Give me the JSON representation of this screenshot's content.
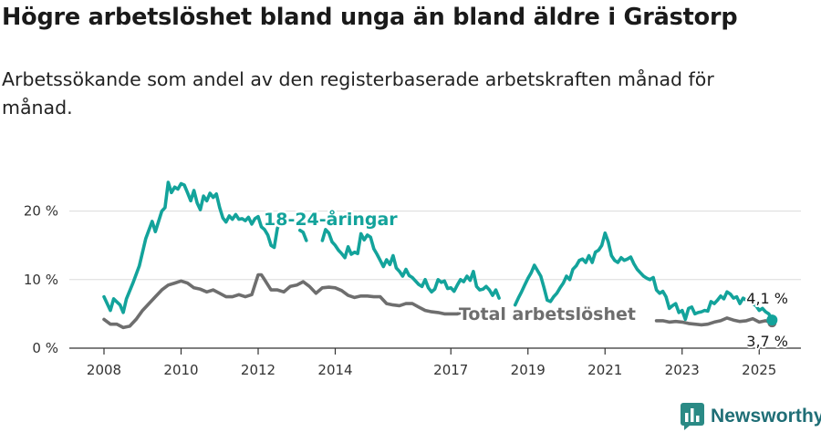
{
  "title": "Högre arbetslöshet bland unga än bland äldre i Grästorp",
  "subtitle": "Arbetssökande som andel av den registerbaserade arbetskraften månad för månad.",
  "brand": "Newsworthy",
  "colors": {
    "young": "#13a39b",
    "total": "#6e6e6e",
    "grid": "#dcdcdc",
    "axis": "#333333"
  },
  "chart_data": {
    "type": "line",
    "x_start": "2008-01",
    "ylim": [
      0,
      25
    ],
    "y_ticks": [
      {
        "value": 0,
        "label": "0 %"
      },
      {
        "value": 10,
        "label": "10 %"
      },
      {
        "value": 20,
        "label": "20 %"
      }
    ],
    "x_ticks": [
      {
        "date": "2008-01",
        "label": "2008"
      },
      {
        "date": "2010-01",
        "label": "2010"
      },
      {
        "date": "2012-01",
        "label": "2012"
      },
      {
        "date": "2014-01",
        "label": "2014"
      },
      {
        "date": "2017-01",
        "label": "2017"
      },
      {
        "date": "2019-01",
        "label": "2019"
      },
      {
        "date": "2021-01",
        "label": "2021"
      },
      {
        "date": "2023-01",
        "label": "2023"
      },
      {
        "date": "2025-01",
        "label": "2025"
      }
    ],
    "series": [
      {
        "name": "18-24-åringar",
        "color": "#13a39b",
        "end_label": "4,1 %",
        "points": [
          [
            "2008-01",
            7.5
          ],
          [
            "2008-03",
            5.5
          ],
          [
            "2008-04",
            7.2
          ],
          [
            "2008-06",
            6.3
          ],
          [
            "2008-07",
            5.2
          ],
          [
            "2008-08",
            7.2
          ],
          [
            "2008-10",
            9.5
          ],
          [
            "2008-12",
            12
          ],
          [
            "2009-02",
            16
          ],
          [
            "2009-04",
            18.5
          ],
          [
            "2009-05",
            17
          ],
          [
            "2009-07",
            20
          ],
          [
            "2009-08",
            20.5
          ],
          [
            "2009-09",
            24.2
          ],
          [
            "2009-10",
            22.7
          ],
          [
            "2009-11",
            23.5
          ],
          [
            "2009-12",
            23.2
          ],
          [
            "2010-01",
            24.0
          ],
          [
            "2010-02",
            23.8
          ],
          [
            "2010-03",
            22.7
          ],
          [
            "2010-04",
            21.5
          ],
          [
            "2010-05",
            23.0
          ],
          [
            "2010-06",
            21.2
          ],
          [
            "2010-07",
            20.2
          ],
          [
            "2010-08",
            22.2
          ],
          [
            "2010-09",
            21.5
          ],
          [
            "2010-10",
            22.6
          ],
          [
            "2010-11",
            22.0
          ],
          [
            "2010-12",
            22.5
          ],
          [
            "2011-01",
            20.5
          ],
          [
            "2011-02",
            19.0
          ],
          [
            "2011-03",
            18.4
          ],
          [
            "2011-04",
            19.3
          ],
          [
            "2011-05",
            18.8
          ],
          [
            "2011-06",
            19.5
          ],
          [
            "2011-07",
            18.8
          ],
          [
            "2011-08",
            18.9
          ],
          [
            "2011-09",
            18.6
          ],
          [
            "2011-10",
            19.1
          ],
          [
            "2011-11",
            18.1
          ],
          [
            "2011-12",
            18.9
          ],
          [
            "2012-01",
            19.2
          ],
          [
            "2012-02",
            17.7
          ],
          [
            "2012-03",
            17.3
          ],
          [
            "2012-04",
            16.5
          ],
          [
            "2012-05",
            15.0
          ],
          [
            "2012-06",
            14.7
          ],
          [
            "2012-07",
            17.5
          ],
          [
            "2012-08",
            18.4
          ],
          [
            "2012-09",
            18.7
          ],
          [
            "2012-10",
            null
          ],
          [
            "2013-02",
            17.2
          ],
          [
            "2013-03",
            16.9
          ],
          [
            "2013-04",
            15.7
          ],
          [
            "2013-05",
            null
          ],
          [
            "2013-09",
            15.7
          ],
          [
            "2013-10",
            17.3
          ],
          [
            "2013-11",
            16.8
          ],
          [
            "2013-12",
            15.5
          ],
          [
            "2014-01",
            15.0
          ],
          [
            "2014-02",
            14.3
          ],
          [
            "2014-03",
            13.8
          ],
          [
            "2014-04",
            13.2
          ],
          [
            "2014-05",
            14.8
          ],
          [
            "2014-06",
            13.7
          ],
          [
            "2014-07",
            14.0
          ],
          [
            "2014-08",
            13.8
          ],
          [
            "2014-09",
            16.7
          ],
          [
            "2014-10",
            15.8
          ],
          [
            "2014-11",
            16.5
          ],
          [
            "2014-12",
            16.2
          ],
          [
            "2015-01",
            14.5
          ],
          [
            "2015-02",
            13.7
          ],
          [
            "2015-03",
            12.8
          ],
          [
            "2015-04",
            11.9
          ],
          [
            "2015-05",
            12.9
          ],
          [
            "2015-06",
            12.2
          ],
          [
            "2015-07",
            13.5
          ],
          [
            "2015-08",
            11.7
          ],
          [
            "2015-09",
            11.2
          ],
          [
            "2015-10",
            10.5
          ],
          [
            "2015-11",
            11.5
          ],
          [
            "2015-12",
            10.6
          ],
          [
            "2016-01",
            10.3
          ],
          [
            "2016-02",
            9.8
          ],
          [
            "2016-03",
            9.3
          ],
          [
            "2016-04",
            9.0
          ],
          [
            "2016-05",
            10.0
          ],
          [
            "2016-06",
            8.8
          ],
          [
            "2016-07",
            8.2
          ],
          [
            "2016-08",
            8.6
          ],
          [
            "2016-09",
            10.0
          ],
          [
            "2016-10",
            9.6
          ],
          [
            "2016-11",
            9.8
          ],
          [
            "2016-12",
            8.7
          ],
          [
            "2017-01",
            8.8
          ],
          [
            "2017-02",
            8.3
          ],
          [
            "2017-03",
            9.2
          ],
          [
            "2017-04",
            10.0
          ],
          [
            "2017-05",
            9.7
          ],
          [
            "2017-06",
            10.5
          ],
          [
            "2017-07",
            9.9
          ],
          [
            "2017-08",
            11.2
          ],
          [
            "2017-09",
            9.0
          ],
          [
            "2017-10",
            8.5
          ],
          [
            "2017-11",
            8.6
          ],
          [
            "2017-12",
            9.0
          ],
          [
            "2018-01",
            8.5
          ],
          [
            "2018-02",
            7.7
          ],
          [
            "2018-03",
            8.5
          ],
          [
            "2018-04",
            7.3
          ],
          [
            "2018-05",
            null
          ],
          [
            "2018-09",
            6.3
          ],
          [
            "2018-10",
            7.3
          ],
          [
            "2018-11",
            8.2
          ],
          [
            "2018-12",
            9.2
          ],
          [
            "2019-01",
            10.2
          ],
          [
            "2019-02",
            11.0
          ],
          [
            "2019-03",
            12.1
          ],
          [
            "2019-04",
            11.3
          ],
          [
            "2019-05",
            10.5
          ],
          [
            "2019-06",
            8.8
          ],
          [
            "2019-07",
            7.0
          ],
          [
            "2019-08",
            6.8
          ],
          [
            "2019-09",
            7.5
          ],
          [
            "2019-10",
            8.0
          ],
          [
            "2019-11",
            8.8
          ],
          [
            "2019-12",
            9.5
          ],
          [
            "2020-01",
            10.5
          ],
          [
            "2020-02",
            10.0
          ],
          [
            "2020-03",
            11.5
          ],
          [
            "2020-04",
            12.0
          ],
          [
            "2020-05",
            12.8
          ],
          [
            "2020-06",
            13.0
          ],
          [
            "2020-07",
            12.5
          ],
          [
            "2020-08",
            13.5
          ],
          [
            "2020-09",
            12.5
          ],
          [
            "2020-10",
            14.0
          ],
          [
            "2020-11",
            14.3
          ],
          [
            "2020-12",
            15.0
          ],
          [
            "2021-01",
            16.8
          ],
          [
            "2021-02",
            15.5
          ],
          [
            "2021-03",
            13.5
          ],
          [
            "2021-04",
            12.8
          ],
          [
            "2021-05",
            12.5
          ],
          [
            "2021-06",
            13.2
          ],
          [
            "2021-07",
            12.8
          ],
          [
            "2021-08",
            13.0
          ],
          [
            "2021-09",
            13.3
          ],
          [
            "2021-10",
            12.3
          ],
          [
            "2021-11",
            11.5
          ],
          [
            "2021-12",
            11.0
          ],
          [
            "2022-01",
            10.5
          ],
          [
            "2022-02",
            10.2
          ],
          [
            "2022-03",
            10.0
          ],
          [
            "2022-04",
            10.3
          ],
          [
            "2022-05",
            8.5
          ],
          [
            "2022-06",
            8.0
          ],
          [
            "2022-07",
            8.3
          ],
          [
            "2022-08",
            7.5
          ],
          [
            "2022-09",
            5.8
          ],
          [
            "2022-10",
            6.2
          ],
          [
            "2022-11",
            6.5
          ],
          [
            "2022-12",
            5.2
          ],
          [
            "2023-01",
            5.5
          ],
          [
            "2023-02",
            4.2
          ],
          [
            "2023-03",
            5.8
          ],
          [
            "2023-04",
            6.0
          ],
          [
            "2023-05",
            5.0
          ],
          [
            "2023-06",
            5.2
          ],
          [
            "2023-07",
            5.3
          ],
          [
            "2023-08",
            5.5
          ],
          [
            "2023-09",
            5.4
          ],
          [
            "2023-10",
            6.8
          ],
          [
            "2023-11",
            6.5
          ],
          [
            "2023-12",
            7.0
          ],
          [
            "2024-01",
            7.6
          ],
          [
            "2024-02",
            7.2
          ],
          [
            "2024-03",
            8.2
          ],
          [
            "2024-04",
            7.9
          ],
          [
            "2024-05",
            7.3
          ],
          [
            "2024-06",
            7.5
          ],
          [
            "2024-07",
            6.5
          ],
          [
            "2024-08",
            7.3
          ],
          [
            "2024-09",
            7.0
          ],
          [
            "2024-10",
            7.2
          ],
          [
            "2024-11",
            6.5
          ],
          [
            "2024-12",
            6.2
          ],
          [
            "2025-01",
            5.5
          ],
          [
            "2025-02",
            5.8
          ],
          [
            "2025-03",
            5.3
          ],
          [
            "2025-04",
            5.0
          ],
          [
            "2025-05",
            4.1
          ]
        ]
      },
      {
        "name": "Total arbetslöshet",
        "color": "#6e6e6e",
        "end_label": "3,7 %",
        "points": [
          [
            "2008-01",
            4.2
          ],
          [
            "2008-03",
            3.5
          ],
          [
            "2008-05",
            3.5
          ],
          [
            "2008-07",
            3.0
          ],
          [
            "2008-09",
            3.2
          ],
          [
            "2008-11",
            4.2
          ],
          [
            "2009-01",
            5.5
          ],
          [
            "2009-03",
            6.5
          ],
          [
            "2009-05",
            7.5
          ],
          [
            "2009-07",
            8.5
          ],
          [
            "2009-09",
            9.2
          ],
          [
            "2009-11",
            9.5
          ],
          [
            "2010-01",
            9.8
          ],
          [
            "2010-03",
            9.5
          ],
          [
            "2010-05",
            8.8
          ],
          [
            "2010-07",
            8.6
          ],
          [
            "2010-09",
            8.2
          ],
          [
            "2010-11",
            8.5
          ],
          [
            "2011-01",
            8.0
          ],
          [
            "2011-03",
            7.5
          ],
          [
            "2011-05",
            7.5
          ],
          [
            "2011-07",
            7.8
          ],
          [
            "2011-09",
            7.5
          ],
          [
            "2011-11",
            7.8
          ],
          [
            "2012-01",
            10.7
          ],
          [
            "2012-02",
            10.7
          ],
          [
            "2012-03",
            10.0
          ],
          [
            "2012-05",
            8.5
          ],
          [
            "2012-07",
            8.5
          ],
          [
            "2012-09",
            8.2
          ],
          [
            "2012-11",
            9.0
          ],
          [
            "2013-01",
            9.2
          ],
          [
            "2013-03",
            9.7
          ],
          [
            "2013-05",
            9.0
          ],
          [
            "2013-07",
            8.0
          ],
          [
            "2013-09",
            8.8
          ],
          [
            "2013-11",
            8.9
          ],
          [
            "2014-01",
            8.8
          ],
          [
            "2014-03",
            8.4
          ],
          [
            "2014-05",
            7.7
          ],
          [
            "2014-07",
            7.4
          ],
          [
            "2014-09",
            7.6
          ],
          [
            "2014-11",
            7.6
          ],
          [
            "2015-01",
            7.5
          ],
          [
            "2015-03",
            7.5
          ],
          [
            "2015-05",
            6.5
          ],
          [
            "2015-07",
            6.3
          ],
          [
            "2015-09",
            6.2
          ],
          [
            "2015-11",
            6.5
          ],
          [
            "2016-01",
            6.5
          ],
          [
            "2016-03",
            6.0
          ],
          [
            "2016-05",
            5.5
          ],
          [
            "2016-07",
            5.3
          ],
          [
            "2016-09",
            5.2
          ],
          [
            "2016-11",
            5.0
          ],
          [
            "2017-01",
            5.0
          ],
          [
            "2017-03",
            5.0
          ],
          [
            "2017-05",
            5.3
          ],
          [
            "2017-06",
            null
          ],
          [
            "2022-05",
            4.0
          ],
          [
            "2022-07",
            4.0
          ],
          [
            "2022-09",
            3.8
          ],
          [
            "2022-11",
            3.9
          ],
          [
            "2023-01",
            3.8
          ],
          [
            "2023-03",
            3.6
          ],
          [
            "2023-05",
            3.5
          ],
          [
            "2023-07",
            3.4
          ],
          [
            "2023-09",
            3.5
          ],
          [
            "2023-11",
            3.8
          ],
          [
            "2024-01",
            4.0
          ],
          [
            "2024-03",
            4.4
          ],
          [
            "2024-05",
            4.1
          ],
          [
            "2024-07",
            3.9
          ],
          [
            "2024-09",
            4.0
          ],
          [
            "2024-11",
            4.3
          ],
          [
            "2025-01",
            3.8
          ],
          [
            "2025-03",
            4.0
          ],
          [
            "2025-05",
            3.7
          ]
        ]
      }
    ]
  }
}
